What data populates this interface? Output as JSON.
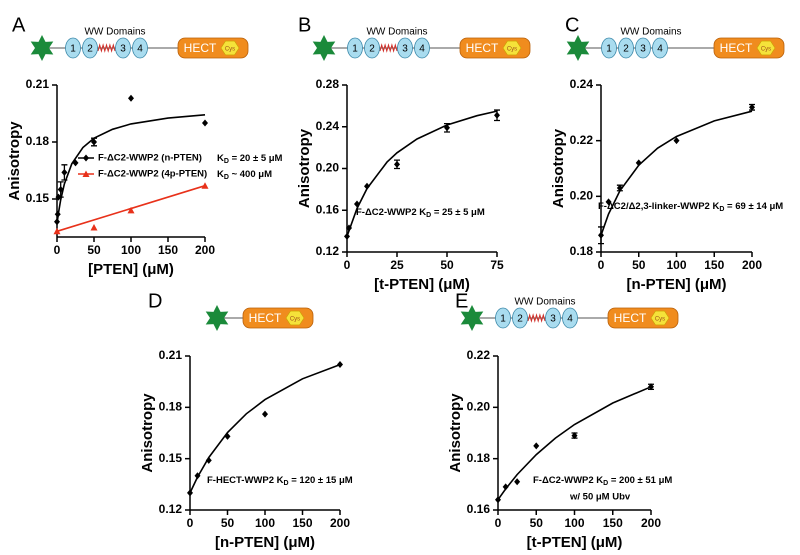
{
  "chart_data": [
    {
      "type": "scatter",
      "panel": "A",
      "xlabel": "[PTEN] (μM)",
      "ylabel": "Anisotropy",
      "xlim": [
        0,
        200
      ],
      "ylim": [
        0.13,
        0.21
      ],
      "xticks": [
        0,
        50,
        100,
        150,
        200
      ],
      "yticks": [
        0.15,
        0.18,
        0.21
      ],
      "diagram": {
        "title": "WW Domains",
        "domains": [
          "1",
          "2",
          "3",
          "4"
        ],
        "linker": true,
        "hect": "HECT",
        "cys": "Cys"
      },
      "legend": true,
      "series": [
        {
          "name": "F-ΔC2-WWP2 (n-PTEN)",
          "kd": [
            "K",
            "D",
            " = 20 ± 5 μM"
          ],
          "color": "#000000",
          "marker": "diamond",
          "x": [
            0,
            1,
            2,
            5,
            10,
            25,
            50,
            100,
            200
          ],
          "values": [
            0.138,
            0.142,
            0.151,
            0.155,
            0.164,
            0.169,
            0.18,
            0.203,
            0.19
          ],
          "errors": [
            null,
            null,
            null,
            0.004,
            0.004,
            null,
            0.002,
            null,
            null
          ],
          "fit": {
            "x": [
              0,
              2,
              5,
              10,
              20,
              35,
              50,
              75,
              100,
              150,
              200
            ],
            "values": [
              0.137,
              0.1427,
              0.1496,
              0.158,
              0.1685,
              0.1771,
              0.182,
              0.1867,
              0.1895,
              0.1926,
              0.1943
            ]
          }
        },
        {
          "name": "F-ΔC2-WWP2 (4p-PTEN)",
          "kd": [
            "K",
            "D",
            " ~ 400 μM"
          ],
          "color": "#e8311a",
          "marker": "triangle",
          "x": [
            0,
            50,
            100,
            200
          ],
          "values": [
            0.133,
            0.135,
            0.144,
            0.157
          ],
          "errors": [
            null,
            null,
            null,
            null
          ],
          "fit": {
            "x": [
              0,
              200
            ],
            "values": [
              0.133,
              0.157
            ]
          }
        }
      ]
    },
    {
      "type": "scatter",
      "panel": "B",
      "xlabel": "[t-PTEN] (μM)",
      "ylabel": "Anisotropy",
      "xlim": [
        0,
        75
      ],
      "ylim": [
        0.12,
        0.28
      ],
      "xticks": [
        0,
        25,
        50,
        75
      ],
      "yticks": [
        0.12,
        0.16,
        {
          "value": 0.2,
          "label": "0.20"
        },
        0.24,
        0.28
      ],
      "diagram": {
        "title": "WW Domains",
        "domains": [
          "1",
          "2",
          "3",
          "4"
        ],
        "linker": true,
        "hect": "HECT",
        "cys": "Cys"
      },
      "annotation": [
        "F-ΔC2-WWP2 K",
        "D",
        " = 25 ± 5 μM"
      ],
      "series": [
        {
          "color": "#000000",
          "marker": "diamond",
          "x": [
            0,
            1,
            5,
            10,
            25,
            50,
            75
          ],
          "values": [
            0.135,
            0.143,
            0.166,
            0.183,
            0.204,
            0.239,
            0.251
          ],
          "errors": [
            null,
            null,
            null,
            null,
            0.004,
            0.004,
            0.005
          ],
          "fit": {
            "x": [
              0,
              5,
              10,
              20,
              25,
              35,
              50,
              65,
              75
            ],
            "values": [
              0.135,
              0.1617,
              0.1807,
              0.2061,
              0.215,
              0.2283,
              0.2417,
              0.2506,
              0.255
            ]
          }
        }
      ]
    },
    {
      "type": "scatter",
      "panel": "C",
      "xlabel": "[n-PTEN] (μM)",
      "ylabel": "Anisotropy",
      "xlim": [
        0,
        200
      ],
      "ylim": [
        0.18,
        0.24
      ],
      "xticks": [
        0,
        50,
        100,
        150,
        200
      ],
      "yticks": [
        0.18,
        {
          "value": 0.2,
          "label": "0.20"
        },
        0.22,
        0.24
      ],
      "diagram": {
        "title": "WW Domains",
        "domains": [
          "1",
          "2",
          "3",
          "4"
        ],
        "linker": false,
        "hect": "HECT",
        "cys": "Cys"
      },
      "annotation": [
        "F-ΔC2/Δ2,3-linker-WWP2 K",
        "D",
        " = 69 ± 14 μM"
      ],
      "series": [
        {
          "color": "#000000",
          "marker": "diamond",
          "x": [
            0,
            10,
            25,
            50,
            100,
            200
          ],
          "values": [
            0.186,
            0.198,
            0.203,
            0.212,
            0.22,
            0.232
          ],
          "errors": [
            0.003,
            null,
            0.001,
            null,
            null,
            0.001
          ],
          "fit": {
            "x": [
              0,
              10,
              25,
              50,
              75,
              100,
              150,
              200
            ],
            "values": [
              0.186,
              0.1936,
              0.202,
              0.2112,
              0.2173,
              0.2215,
              0.2271,
              0.2306
            ]
          }
        }
      ]
    },
    {
      "type": "scatter",
      "panel": "D",
      "xlabel": "[n-PTEN] (μM)",
      "ylabel": "Anisotropy",
      "xlim": [
        0,
        200
      ],
      "ylim": [
        0.12,
        0.21
      ],
      "xticks": [
        0,
        50,
        100,
        150,
        200
      ],
      "yticks": [
        0.12,
        0.15,
        0.18,
        0.21
      ],
      "diagram": {
        "hect": "HECT",
        "cys": "Cys"
      },
      "annotation": [
        "F-HECT-WWP2 K",
        "D",
        " = 120 ± 15 μM"
      ],
      "series": [
        {
          "color": "#000000",
          "marker": "diamond",
          "x": [
            0,
            10,
            25,
            50,
            100,
            200
          ],
          "values": [
            0.13,
            0.14,
            0.149,
            0.163,
            0.176,
            0.205
          ],
          "errors": [
            null,
            null,
            null,
            null,
            null,
            null
          ],
          "fit": {
            "x": [
              0,
              10,
              25,
              50,
              75,
              100,
              150,
              200
            ],
            "values": [
              0.13,
              0.1392,
              0.1507,
              0.1653,
              0.1762,
              0.1845,
              0.1967,
              0.205
            ]
          }
        }
      ]
    },
    {
      "type": "scatter",
      "panel": "E",
      "xlabel": "[t-PTEN] (μM)",
      "ylabel": "Anisotropy",
      "xlim": [
        0,
        200
      ],
      "ylim": [
        0.16,
        0.22
      ],
      "xticks": [
        0,
        50,
        100,
        150,
        200
      ],
      "yticks": [
        0.16,
        0.18,
        {
          "value": 0.2,
          "label": "0.20"
        },
        0.22
      ],
      "diagram": {
        "title": "WW Domains",
        "domains": [
          "1",
          "2",
          "3",
          "4"
        ],
        "linker": true,
        "hect": "HECT",
        "cys": "Cys"
      },
      "annotation": [
        "F-ΔC2-WWP2 K",
        "D",
        " = 200 ± 51 μM"
      ],
      "note": "w/ 50 μM Ubv",
      "series": [
        {
          "color": "#000000",
          "marker": "diamond",
          "x": [
            0,
            10,
            25,
            50,
            100,
            200
          ],
          "values": [
            0.164,
            0.169,
            0.171,
            0.185,
            0.189,
            0.208
          ],
          "errors": [
            null,
            null,
            null,
            null,
            0.001,
            0.001
          ],
          "fit": {
            "x": [
              0,
              10,
              25,
              50,
              75,
              100,
              150,
              200
            ],
            "values": [
              0.164,
              0.1682,
              0.1738,
              0.1816,
              0.188,
              0.1933,
              0.2017,
              0.208
            ]
          }
        }
      ]
    }
  ]
}
